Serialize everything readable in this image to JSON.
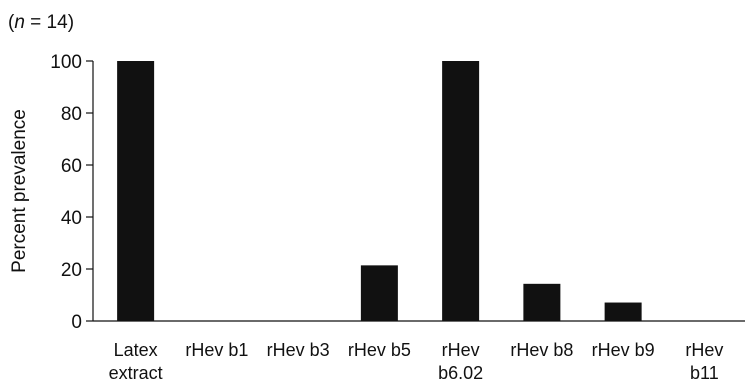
{
  "note": {
    "open": "(",
    "var": "n",
    "rest": " = 14)"
  },
  "chart_data": {
    "type": "bar",
    "title": "",
    "xlabel": "",
    "ylabel": "Percent prevalence",
    "ylim": [
      0,
      100
    ],
    "yticks": [
      0,
      20,
      40,
      60,
      80,
      100
    ],
    "grid": false,
    "legend": "none",
    "bar_color": "#111111",
    "categories": [
      [
        "Latex",
        "extract"
      ],
      [
        "rHev b1"
      ],
      [
        "rHev b3"
      ],
      [
        "rHev b5"
      ],
      [
        "rHev",
        "b6.02"
      ],
      [
        "rHev b8"
      ],
      [
        "rHev b9"
      ],
      [
        "rHev",
        "b11"
      ]
    ],
    "values": [
      100,
      0,
      0,
      21.4,
      100,
      14.3,
      7.1,
      0
    ]
  }
}
